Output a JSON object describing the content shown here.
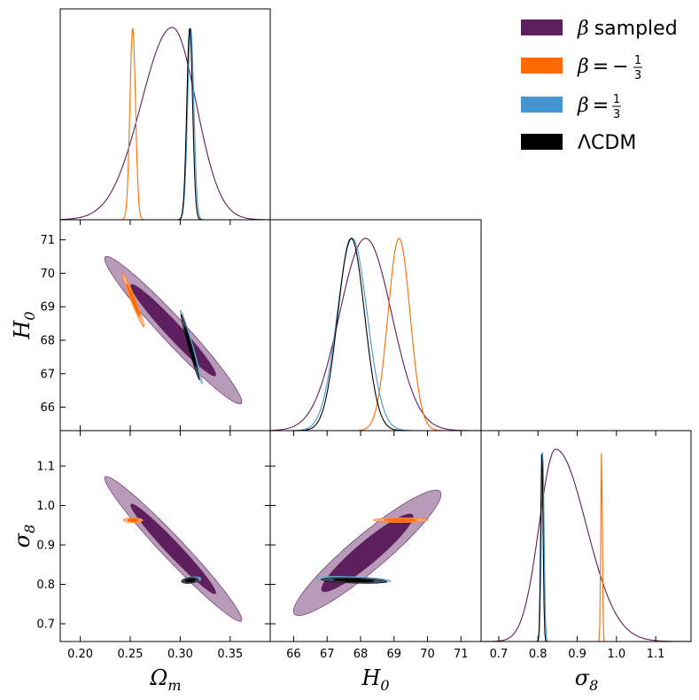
{
  "chart_data": {
    "type": "triangle-corner-plot",
    "parameters": [
      "Ωm",
      "H0",
      "σ8"
    ],
    "axis_labels": {
      "omega_m": {
        "symbol": "Ω",
        "sub": "m"
      },
      "h0": {
        "symbol": "H",
        "sub": "0"
      },
      "sigma8": {
        "symbol": "σ",
        "sub": "8"
      }
    },
    "axes": {
      "omega_m": {
        "range": [
          0.18,
          0.39
        ],
        "ticks": [
          0.2,
          0.25,
          0.3,
          0.35
        ],
        "tick_labels": [
          "0.20",
          "0.25",
          "0.30",
          "0.35"
        ]
      },
      "h0": {
        "range": [
          65.3,
          71.6
        ],
        "ticks": [
          66,
          67,
          68,
          69,
          70,
          71
        ],
        "tick_labels": [
          "66",
          "67",
          "68",
          "69",
          "70",
          "71"
        ]
      },
      "sigma8": {
        "range": [
          0.655,
          1.19
        ],
        "ticks": [
          0.7,
          0.8,
          0.9,
          1.0,
          1.1
        ],
        "tick_labels": [
          "0.7",
          "0.8",
          "0.9",
          "1.0",
          "1.1"
        ]
      }
    },
    "series": [
      {
        "name": "β sampled",
        "color": "#5e1f5e",
        "light_color": "#b89bb8",
        "omega_m": {
          "mean": 0.292,
          "sd": 0.027,
          "skew_left": 0.031,
          "skew_right": 0.024
        },
        "h0": {
          "mean": 68.15,
          "sd": 0.78
        },
        "sigma8": {
          "mean": 0.845,
          "sd": 0.06,
          "sd_left": 0.042,
          "sd_right": 0.078
        },
        "ellipses": {
          "om_h0": {
            "center": [
              0.293,
              68.3
            ],
            "sd": [
              0.028,
              0.9
            ],
            "rho": -0.97
          },
          "om_s8": {
            "center": [
              0.293,
              0.89
            ],
            "sd": [
              0.028,
              0.075
            ],
            "rho": -0.975
          },
          "h0_s8": {
            "center": [
              68.2,
              0.88
            ],
            "sd": [
              0.9,
              0.065
            ],
            "rho": 0.93
          }
        }
      },
      {
        "name": "β = −1/3",
        "color": "#ff6a00",
        "light_color": "#ffb27f",
        "omega_m": {
          "mean": 0.2525,
          "sd": 0.0028
        },
        "h0": {
          "mean": 69.15,
          "sd": 0.33
        },
        "sigma8": {
          "mean": 0.962,
          "sd": 0.002
        },
        "ellipses": {
          "om_h0": {
            "center": [
              0.253,
              69.2
            ],
            "sd": [
              0.0045,
              0.33
            ],
            "rho": -0.97
          },
          "om_s8": {
            "center": [
              0.253,
              0.963
            ],
            "sd": [
              0.004,
              0.0025
            ],
            "rho": 0.0
          },
          "h0_s8": {
            "center": [
              69.2,
              0.963
            ],
            "sd": [
              0.33,
              0.0025
            ],
            "rho": 0.0
          }
        }
      },
      {
        "name": "β = 1/3",
        "color": "#4496d2",
        "light_color": "#9fc9e8",
        "omega_m": {
          "mean": 0.3105,
          "sd": 0.0031
        },
        "h0": {
          "mean": 67.75,
          "sd": 0.45
        },
        "sigma8": {
          "mean": 0.812,
          "sd": 0.0035
        },
        "ellipses": {
          "om_h0": {
            "center": [
              0.311,
              67.8
            ],
            "sd": [
              0.0045,
              0.45
            ],
            "rho": -0.98
          },
          "om_s8": {
            "center": [
              0.311,
              0.811
            ],
            "sd": [
              0.004,
              0.0035
            ],
            "rho": 0.4
          },
          "h0_s8": {
            "center": [
              67.8,
              0.812
            ],
            "sd": [
              0.45,
              0.0035
            ],
            "rho": -0.45
          }
        }
      },
      {
        "name": "ΛCDM",
        "color": "#000000",
        "light_color": "#3c4a52",
        "omega_m": {
          "mean": 0.3095,
          "sd": 0.0029
        },
        "h0": {
          "mean": 67.72,
          "sd": 0.4
        },
        "sigma8": {
          "mean": 0.81,
          "sd": 0.003
        },
        "ellipses": {
          "om_h0": {
            "center": [
              0.31,
              67.8
            ],
            "sd": [
              0.0038,
              0.4
            ],
            "rho": -0.98
          },
          "om_s8": {
            "center": [
              0.31,
              0.81
            ],
            "sd": [
              0.0035,
              0.003
            ],
            "rho": 0.3
          },
          "h0_s8": {
            "center": [
              67.8,
              0.81
            ],
            "sd": [
              0.4,
              0.003
            ],
            "rho": -0.4
          }
        }
      }
    ],
    "legend": {
      "placement": "top-right",
      "entries": [
        {
          "prefix": "β",
          "text": " sampled",
          "fraction": "",
          "sign": "",
          "color": "#5e1f5e"
        },
        {
          "prefix": "β",
          "text": " = −",
          "fraction": "1/3",
          "sign": "−",
          "color": "#ff6a00"
        },
        {
          "prefix": "β",
          "text": " = ",
          "fraction": "1/3",
          "sign": "",
          "color": "#4496d2"
        },
        {
          "prefix": "",
          "text": "ΛCDM",
          "fraction": "",
          "sign": "",
          "color": "#000000"
        }
      ],
      "fraction_num": "1",
      "fraction_den": "3",
      "beta": "β",
      "equals": "=",
      "minus": "−",
      "sampled": "sampled",
      "lcdm": "ΛCDM"
    }
  }
}
